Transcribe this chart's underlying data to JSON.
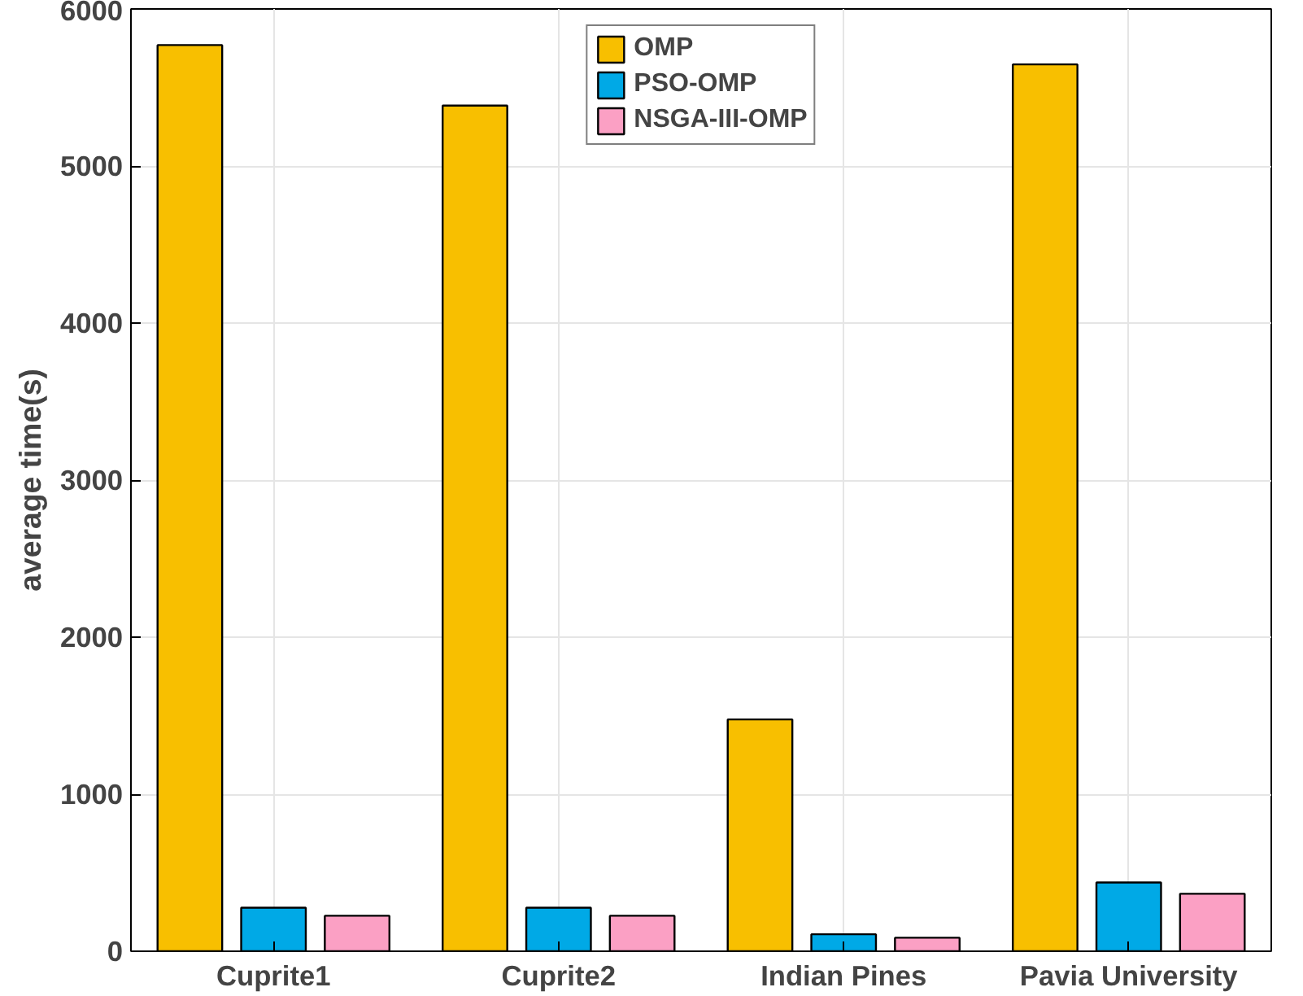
{
  "chart_data": {
    "type": "bar",
    "ylabel": "average time(s)",
    "categories": [
      "Cuprite1",
      "Cuprite2",
      "Indian Pines",
      "Pavia University"
    ],
    "series": [
      {
        "name": "OMP",
        "color": "#f8bf00",
        "values": [
          5770,
          5385,
          1476,
          5647
        ]
      },
      {
        "name": "PSO-OMP",
        "color": "#00a9e6",
        "values": [
          277,
          277,
          108,
          438
        ]
      },
      {
        "name": "NSGA-III-OMP",
        "color": "#fba0c4",
        "values": [
          226,
          226,
          86,
          366
        ]
      }
    ],
    "ylim": [
      0,
      6000
    ],
    "yticks": [
      0,
      1000,
      2000,
      3000,
      4000,
      5000,
      6000
    ],
    "grid": true,
    "legend": "top"
  }
}
